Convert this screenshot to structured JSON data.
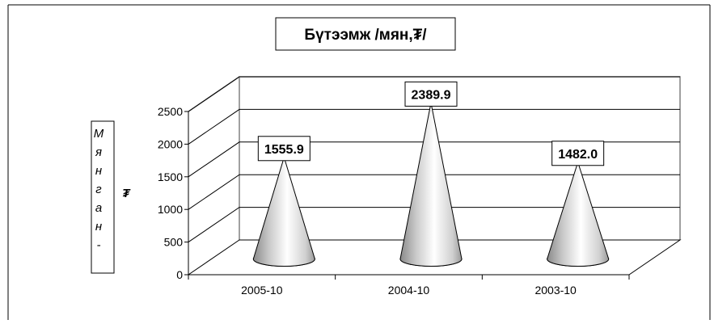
{
  "chart_data": {
    "type": "bar",
    "shape": "cone",
    "title": "Бүтээмж /мян,₮/",
    "ylabel_lines": [
      "М",
      "я",
      "н",
      "г",
      "а",
      "н",
      "-"
    ],
    "ylabel_currency": "₮",
    "xlabel": "",
    "categories": [
      "2005-10",
      "2004-10",
      "2003-10"
    ],
    "values": [
      1555.9,
      2389.9,
      1482.0
    ],
    "data_labels": [
      "1555.9",
      "2389.9",
      "1482.0"
    ],
    "ylim": [
      0,
      2500
    ],
    "yticks": [
      "0",
      "500",
      "1000",
      "1500",
      "2000",
      "2500"
    ],
    "grid": true,
    "legend": "none",
    "colors": {
      "cone_light": "#ffffff",
      "cone_dark": "#8a8a8a",
      "grid": "#000000",
      "frame": "#000000"
    }
  }
}
